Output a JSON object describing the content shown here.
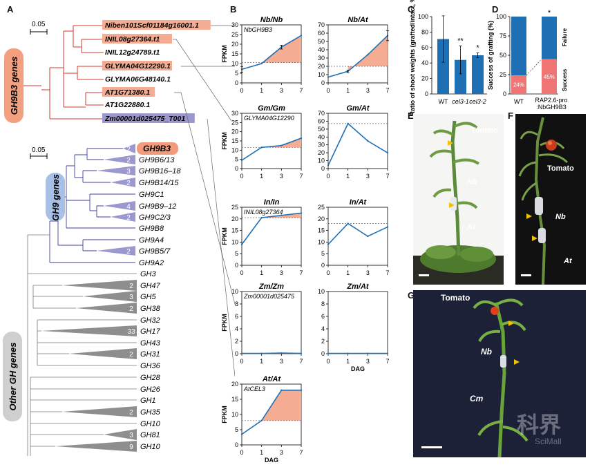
{
  "panels": {
    "A": "A",
    "B": "B",
    "C": "C",
    "D": "D",
    "E": "E",
    "F": "F",
    "G": "G"
  },
  "colors": {
    "red": "#d9342b",
    "blue": "#1f6fb4",
    "salmon": "#f4ac92",
    "purple": "#9b98cf",
    "gray": "#999999",
    "greenPlant": "#5b8a3a"
  },
  "treeA": {
    "scale1": "0.05",
    "scale2": "0.05",
    "gh9b3_group": "GH9B3 genes",
    "gh9_group": "GH9 genes",
    "other_group": "Other GH genes",
    "top_leaves": [
      {
        "label": "Niben101Scf01184g16001.1",
        "box": "salmon"
      },
      {
        "label": "INIL08g27364.t1",
        "box": "salmon"
      },
      {
        "label": "INIL12g24789.t1",
        "box": "none"
      },
      {
        "label": "GLYMA04G12290.1",
        "box": "salmon"
      },
      {
        "label": "GLYMA06G48140.1",
        "box": "none"
      },
      {
        "label": "AT1G71380.1",
        "box": "salmon"
      },
      {
        "label": "AT1G22880.1",
        "box": "none"
      },
      {
        "label": "Zm00001d025475_T001",
        "box": "purple"
      }
    ],
    "gh9_leaves": [
      {
        "label": "GH9B3",
        "count": "2",
        "highlight": true
      },
      {
        "label": "GH9B6/13",
        "count": "2"
      },
      {
        "label": "GH9B16–18",
        "count": "3"
      },
      {
        "label": "GH9B14/15",
        "count": "2"
      },
      {
        "label": "GH9C1",
        "count": ""
      },
      {
        "label": "GH9B9–12",
        "count": "4"
      },
      {
        "label": "GH9C2/3",
        "count": "2"
      },
      {
        "label": "GH9B8",
        "count": ""
      },
      {
        "label": "GH9A4",
        "count": ""
      },
      {
        "label": "GH9B5/7",
        "count": "2"
      },
      {
        "label": "GH9A2",
        "count": ""
      }
    ],
    "other_leaves": [
      {
        "label": "GH3",
        "count": ""
      },
      {
        "label": "GH47",
        "count": "2"
      },
      {
        "label": "GH5",
        "count": "3"
      },
      {
        "label": "GH38",
        "count": "2"
      },
      {
        "label": "GH32",
        "count": ""
      },
      {
        "label": "GH17",
        "count": "33"
      },
      {
        "label": "GH43",
        "count": ""
      },
      {
        "label": "GH31",
        "count": "2"
      },
      {
        "label": "GH36",
        "count": ""
      },
      {
        "label": "GH28",
        "count": ""
      },
      {
        "label": "GH26",
        "count": ""
      },
      {
        "label": "GH1",
        "count": ""
      },
      {
        "label": "GH35",
        "count": "2"
      },
      {
        "label": "GH10",
        "count": ""
      },
      {
        "label": "GH81",
        "count": "3"
      },
      {
        "label": "GH10",
        "count": "9"
      }
    ]
  },
  "chart_data": [
    {
      "type": "line",
      "title": "Nb/Nb",
      "subtitle": "NbGH9B3",
      "ylabel": "FPKM",
      "xlabel": "",
      "x": [
        0,
        1,
        3,
        7
      ],
      "values": [
        7,
        10,
        18.5,
        24.5
      ],
      "errors": [
        1.5,
        0,
        1,
        0
      ],
      "baseline": 10.5,
      "ylim": [
        0,
        30
      ],
      "yticks": [
        0,
        5,
        10,
        15,
        20,
        25,
        30
      ],
      "fill": true
    },
    {
      "type": "line",
      "title": "Nb/At",
      "subtitle": "",
      "ylabel": "",
      "xlabel": "",
      "x": [
        0,
        1,
        3,
        7
      ],
      "values": [
        7,
        14,
        34,
        57
      ],
      "errors": [
        0,
        1.5,
        0,
        6
      ],
      "baseline": 20,
      "ylim": [
        0,
        70
      ],
      "yticks": [
        0,
        10,
        20,
        30,
        40,
        50,
        60,
        70
      ],
      "fill": true
    },
    {
      "type": "line",
      "title": "Gm/Gm",
      "subtitle": "GLYMA04G12290",
      "ylabel": "FPKM",
      "xlabel": "",
      "x": [
        0,
        1,
        3,
        7
      ],
      "values": [
        4.5,
        11.5,
        12.5,
        16.5
      ],
      "errors": [
        0,
        0,
        0,
        0
      ],
      "baseline": 11.5,
      "ylim": [
        0,
        30
      ],
      "yticks": [
        0,
        5,
        10,
        15,
        20,
        25,
        30
      ],
      "fill": true
    },
    {
      "type": "line",
      "title": "Gm/At",
      "subtitle": "",
      "ylabel": "",
      "xlabel": "",
      "x": [
        0,
        1,
        3,
        7
      ],
      "values": [
        4,
        57,
        35,
        20
      ],
      "errors": [
        0,
        0,
        0,
        0
      ],
      "baseline": 57,
      "ylim": [
        0,
        70
      ],
      "yticks": [
        0,
        10,
        20,
        30,
        40,
        50,
        60,
        70
      ],
      "fill": false
    },
    {
      "type": "line",
      "title": "In/In",
      "subtitle": "INIL08g27364",
      "ylabel": "FPKM",
      "xlabel": "",
      "x": [
        0,
        1,
        3,
        7
      ],
      "values": [
        9,
        20.5,
        21.5,
        22.5
      ],
      "errors": [
        0,
        0,
        0,
        0
      ],
      "baseline": 20.5,
      "ylim": [
        0,
        25
      ],
      "yticks": [
        0,
        5,
        10,
        15,
        20,
        25
      ],
      "fill": true
    },
    {
      "type": "line",
      "title": "In/At",
      "subtitle": "",
      "ylabel": "",
      "xlabel": "",
      "x": [
        0,
        1,
        3,
        7
      ],
      "values": [
        9,
        18,
        12.5,
        16.5
      ],
      "errors": [
        0,
        0,
        0,
        0
      ],
      "baseline": 18,
      "ylim": [
        0,
        25
      ],
      "yticks": [
        0,
        5,
        10,
        15,
        20,
        25
      ],
      "fill": false
    },
    {
      "type": "line",
      "title": "Zm/Zm",
      "subtitle": "Zm00001d025475",
      "ylabel": "FPKM",
      "xlabel": "",
      "x": [
        0,
        1,
        3,
        7
      ],
      "values": [
        0.05,
        0.05,
        0.1,
        0.05
      ],
      "errors": [
        0,
        0,
        0,
        0
      ],
      "baseline": null,
      "ylim": [
        0,
        10
      ],
      "yticks": [
        0,
        2,
        4,
        6,
        8,
        10
      ],
      "fill": false
    },
    {
      "type": "line",
      "title": "Zm/At",
      "subtitle": "",
      "ylabel": "",
      "xlabel": "DAG",
      "x": [
        0,
        1,
        3,
        7
      ],
      "values": [
        0.05,
        0.05,
        0.05,
        0.05
      ],
      "errors": [
        0,
        0,
        0,
        0
      ],
      "baseline": null,
      "ylim": [
        0,
        10
      ],
      "yticks": [
        0,
        2,
        4,
        6,
        8,
        10
      ],
      "fill": false
    },
    {
      "type": "line",
      "title": "At/At",
      "subtitle": "AtCEL3",
      "ylabel": "FPKM",
      "xlabel": "DAG",
      "x": [
        0,
        1,
        3,
        7
      ],
      "values": [
        3.5,
        8,
        18,
        18
      ],
      "errors": [
        0,
        0,
        0,
        0
      ],
      "baseline": 8,
      "ylim": [
        0,
        20
      ],
      "yticks": [
        0,
        5,
        10,
        15,
        20
      ],
      "fill": true
    },
    {
      "type": "bar",
      "title": "",
      "ylabel": "Ratio of shoot weights (grafted/intact, %)",
      "categories": [
        "WT",
        "cel3-1",
        "cel3-2"
      ],
      "values": [
        71,
        44,
        50
      ],
      "errors": [
        30,
        18,
        3
      ],
      "sig": [
        "",
        "**",
        "*"
      ],
      "ylim": [
        0,
        100
      ],
      "yticks": [
        0,
        20,
        40,
        60,
        80,
        100
      ]
    },
    {
      "type": "bar",
      "title": "",
      "ylabel": "Success of grafting (%)",
      "categories": [
        "WT",
        "RAP2.6-pro\n:NbGH9B3"
      ],
      "series": [
        {
          "name": "Success",
          "values": [
            24,
            45
          ]
        },
        {
          "name": "Failure",
          "values": [
            76,
            55
          ]
        }
      ],
      "value_labels": [
        "24%",
        "45%"
      ],
      "sig": [
        "",
        "*"
      ],
      "ylim": [
        0,
        100
      ],
      "yticks": [
        0,
        25,
        50,
        75,
        100
      ]
    }
  ],
  "photoE": {
    "tomato": "Tomato",
    "nb": "Nb",
    "at": "At"
  },
  "photoF": {
    "tomato": "Tomato",
    "nb": "Nb",
    "at": "At"
  },
  "photoG": {
    "tomato": "Tomato",
    "nb": "Nb",
    "cm": "Cm"
  },
  "watermark": {
    "cn": "科界",
    "en": "SciMall"
  }
}
